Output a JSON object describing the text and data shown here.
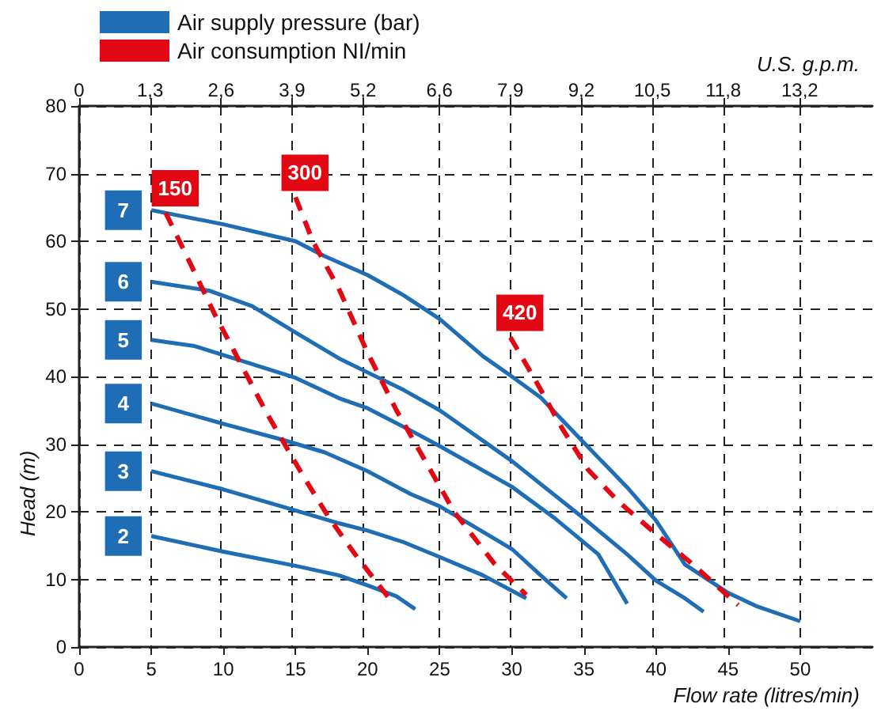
{
  "chart_data": {
    "type": "line",
    "xlabel": "Flow rate (litres/min)",
    "ylabel": "Head (m)",
    "x2label": "U.S. g.p.m.",
    "xlim": [
      0,
      55
    ],
    "xticks": [
      0,
      5,
      10,
      15,
      20,
      25,
      30,
      35,
      40,
      45,
      50
    ],
    "x2lim": [
      0,
      14.53
    ],
    "x2ticks": [
      0,
      {
        "value": 1.3,
        "label": "1,3"
      },
      {
        "value": 2.6,
        "label": "2,6"
      },
      {
        "value": 3.9,
        "label": "3,9"
      },
      {
        "value": 5.2,
        "label": "5,2"
      },
      {
        "value": 6.6,
        "label": "6,6"
      },
      {
        "value": 7.9,
        "label": "7,9"
      },
      {
        "value": 9.2,
        "label": "9,2"
      },
      {
        "value": 10.5,
        "label": "10,5"
      },
      {
        "value": 11.8,
        "label": "11,8"
      },
      {
        "value": 13.2,
        "label": "13,2"
      }
    ],
    "ylim": [
      0,
      80
    ],
    "yticks": [
      0,
      10,
      20,
      30,
      40,
      50,
      60,
      70,
      80
    ],
    "grid": true,
    "legend": "top left",
    "marker": "none",
    "series": [
      {
        "name": "Air supply pressure (bar)",
        "color": "#1f6db5",
        "line_style": "solid"
      },
      {
        "name": "Air consumption NI/min",
        "color": "#e30613",
        "line_style": "dashed"
      },
      {
        "name": "7",
        "color": "#1f6db5",
        "line_style": "solid",
        "x": [
          5,
          10,
          15,
          17,
          20,
          22.5,
          25,
          28,
          30,
          32,
          35,
          38,
          40,
          42,
          45,
          47,
          50
        ],
        "values": [
          64.6,
          62.5,
          60,
          57.8,
          55,
          52,
          48.5,
          43,
          40,
          36.9,
          30.2,
          23.6,
          18.7,
          12.2,
          8,
          6,
          3.8
        ]
      },
      {
        "name": "6",
        "color": "#1f6db5",
        "line_style": "solid",
        "x": [
          5,
          9,
          12,
          15,
          18,
          20,
          22.5,
          25,
          30,
          35,
          38,
          40,
          42,
          43.3
        ],
        "values": [
          54,
          52.7,
          50.4,
          46.5,
          42.7,
          40.6,
          38,
          35,
          27.5,
          19,
          13.7,
          9.8,
          7.2,
          5.2
        ]
      },
      {
        "name": "5",
        "color": "#1f6db5",
        "line_style": "solid",
        "x": [
          5,
          8,
          11,
          15,
          18,
          20,
          23,
          25,
          30,
          33,
          36,
          38
        ],
        "values": [
          45.4,
          44.5,
          42.5,
          39.8,
          36.8,
          35.3,
          32,
          29.7,
          23.7,
          19,
          13.7,
          6.4
        ]
      },
      {
        "name": "4",
        "color": "#1f6db5",
        "line_style": "solid",
        "x": [
          5,
          10,
          14,
          17,
          20,
          23,
          25,
          27,
          30,
          32,
          33.8
        ],
        "values": [
          36,
          33,
          30.7,
          28.8,
          26,
          22.6,
          20.8,
          18.3,
          14.5,
          10.6,
          7.2
        ]
      },
      {
        "name": "3",
        "color": "#1f6db5",
        "line_style": "solid",
        "x": [
          5,
          10,
          15,
          18,
          20,
          22.5,
          25,
          28,
          31
        ],
        "values": [
          26,
          23.3,
          20.2,
          18.3,
          17.2,
          15.5,
          13.3,
          10.6,
          7.2
        ]
      },
      {
        "name": "2",
        "color": "#1f6db5",
        "line_style": "solid",
        "x": [
          5,
          10,
          15,
          18,
          20,
          22,
          23.3
        ],
        "values": [
          16.4,
          14.1,
          12,
          10.6,
          9.1,
          7.5,
          5.6
        ]
      },
      {
        "name": "150",
        "color": "#e30613",
        "line_style": "dashed",
        "x": [
          6,
          7.3,
          9.4,
          11.1,
          13,
          15.5,
          17.3,
          19.1,
          21.6
        ],
        "values": [
          64.2,
          58.5,
          49.2,
          42.3,
          34.6,
          25.4,
          19.2,
          13.8,
          6.9
        ]
      },
      {
        "name": "300",
        "color": "#e30613",
        "line_style": "dashed",
        "x": [
          15,
          16.2,
          18,
          20,
          22,
          24,
          26,
          28.8,
          31
        ],
        "values": [
          66.5,
          60,
          53,
          43.5,
          35,
          27.5,
          20,
          12.3,
          7.7
        ]
      },
      {
        "name": "420",
        "color": "#e30613",
        "line_style": "dashed",
        "x": [
          29.9,
          31.7,
          33.5,
          35.3,
          37.4,
          39.9,
          42.5,
          45.7
        ],
        "values": [
          45.8,
          39.2,
          32.3,
          26.2,
          21.5,
          16.9,
          12.3,
          6.2
        ]
      }
    ]
  }
}
